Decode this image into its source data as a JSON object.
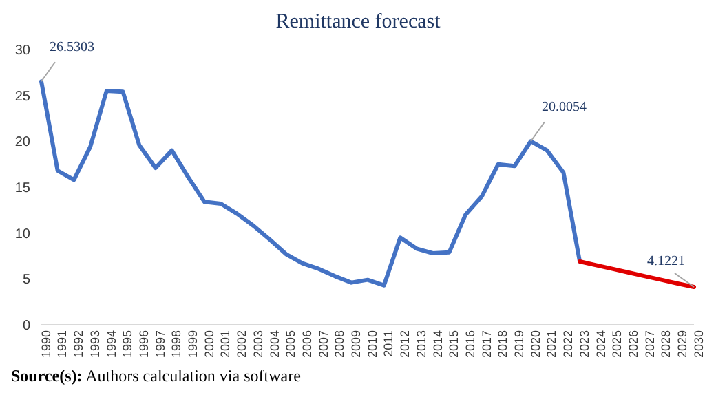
{
  "chart_data": {
    "type": "line",
    "title": "Remittance forecast",
    "categories": [
      "1990",
      "1991",
      "1992",
      "1993",
      "1994",
      "1995",
      "1996",
      "1997",
      "1998",
      "1999",
      "2000",
      "2001",
      "2002",
      "2003",
      "2004",
      "2005",
      "2006",
      "2007",
      "2008",
      "2009",
      "2010",
      "2011",
      "2012",
      "2013",
      "2014",
      "2015",
      "2016",
      "2017",
      "2018",
      "2019",
      "2020",
      "2021",
      "2022",
      "2023",
      "2024",
      "2025",
      "2026",
      "2027",
      "2028",
      "2029",
      "2030"
    ],
    "series": [
      {
        "color": "#4472c4",
        "values": [
          26.5303,
          16.8,
          15.8,
          19.4,
          25.5,
          25.4,
          19.6,
          17.1,
          19.0,
          16.1,
          13.4,
          13.2,
          12.1,
          10.8,
          9.3,
          7.7,
          6.7,
          6.1,
          5.3,
          4.6,
          4.9,
          4.3,
          9.5,
          8.3,
          7.8,
          7.9,
          12.0,
          14.0,
          17.5,
          17.3,
          20.0054,
          19.0,
          16.6,
          6.9,
          null,
          null,
          null,
          null,
          null,
          null,
          null
        ],
        "value_labels": [
          "26.5303",
          null,
          null,
          null,
          null,
          null,
          null,
          null,
          null,
          null,
          null,
          null,
          null,
          null,
          null,
          null,
          null,
          null,
          null,
          null,
          null,
          null,
          null,
          null,
          null,
          null,
          null,
          null,
          null,
          null,
          "20.0054",
          null,
          null,
          null,
          null,
          null,
          null,
          null,
          null,
          null,
          null
        ]
      },
      {
        "color": "#e00000",
        "values": [
          null,
          null,
          null,
          null,
          null,
          null,
          null,
          null,
          null,
          null,
          null,
          null,
          null,
          null,
          null,
          null,
          null,
          null,
          null,
          null,
          null,
          null,
          null,
          null,
          null,
          null,
          null,
          null,
          null,
          null,
          null,
          null,
          null,
          6.9,
          6.5,
          6.1,
          5.7,
          5.3,
          4.9,
          4.5,
          4.1221
        ],
        "value_labels": [
          null,
          null,
          null,
          null,
          null,
          null,
          null,
          null,
          null,
          null,
          null,
          null,
          null,
          null,
          null,
          null,
          null,
          null,
          null,
          null,
          null,
          null,
          null,
          null,
          null,
          null,
          null,
          null,
          null,
          null,
          null,
          null,
          null,
          null,
          null,
          null,
          null,
          null,
          null,
          null,
          "4.1221"
        ]
      }
    ],
    "ylim": [
      0,
      30
    ],
    "yticks": [
      0,
      5,
      10,
      15,
      20,
      25,
      30
    ],
    "grid": false,
    "legend": false,
    "marker": "none",
    "line_style": "solid",
    "annotations": [
      "Source(s): Authors calculation via software"
    ]
  }
}
